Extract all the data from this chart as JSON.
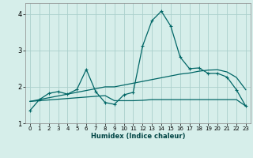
{
  "xlabel": "Humidex (Indice chaleur)",
  "bg_color": "#d6eeea",
  "grid_color": "#aacfcc",
  "line_color": "#006666",
  "xlim": [
    -0.5,
    23.5
  ],
  "ylim": [
    1.0,
    4.3
  ],
  "yticks": [
    1,
    2,
    3,
    4
  ],
  "xticks": [
    0,
    1,
    2,
    3,
    4,
    5,
    6,
    7,
    8,
    9,
    10,
    11,
    12,
    13,
    14,
    15,
    16,
    17,
    18,
    19,
    20,
    21,
    22,
    23
  ],
  "line1_x": [
    0,
    1,
    2,
    3,
    4,
    5,
    6,
    7,
    8,
    9,
    10,
    11,
    12,
    13,
    14,
    15,
    16,
    17,
    18,
    19,
    20,
    21,
    22,
    23
  ],
  "line1_y": [
    1.35,
    1.65,
    1.82,
    1.87,
    1.8,
    1.93,
    2.48,
    1.87,
    1.57,
    1.52,
    1.78,
    1.85,
    3.12,
    3.82,
    4.08,
    3.67,
    2.82,
    2.5,
    2.52,
    2.37,
    2.37,
    2.27,
    1.92,
    1.47
  ],
  "line2_x": [
    0,
    1,
    2,
    3,
    4,
    5,
    6,
    7,
    8,
    9,
    10,
    11,
    12,
    13,
    14,
    15,
    16,
    17,
    18,
    19,
    20,
    21,
    22,
    23
  ],
  "line2_y": [
    1.6,
    1.62,
    1.64,
    1.66,
    1.68,
    1.7,
    1.72,
    1.74,
    1.76,
    1.62,
    1.62,
    1.62,
    1.63,
    1.65,
    1.65,
    1.65,
    1.65,
    1.65,
    1.65,
    1.65,
    1.65,
    1.65,
    1.65,
    1.47
  ],
  "line3_x": [
    0,
    1,
    2,
    3,
    4,
    5,
    6,
    7,
    8,
    9,
    10,
    11,
    12,
    13,
    14,
    15,
    16,
    17,
    18,
    19,
    20,
    21,
    22,
    23
  ],
  "line3_y": [
    1.6,
    1.65,
    1.7,
    1.75,
    1.8,
    1.85,
    1.9,
    1.95,
    2.0,
    2.0,
    2.05,
    2.1,
    2.15,
    2.2,
    2.25,
    2.3,
    2.35,
    2.38,
    2.43,
    2.46,
    2.47,
    2.41,
    2.26,
    1.92
  ]
}
